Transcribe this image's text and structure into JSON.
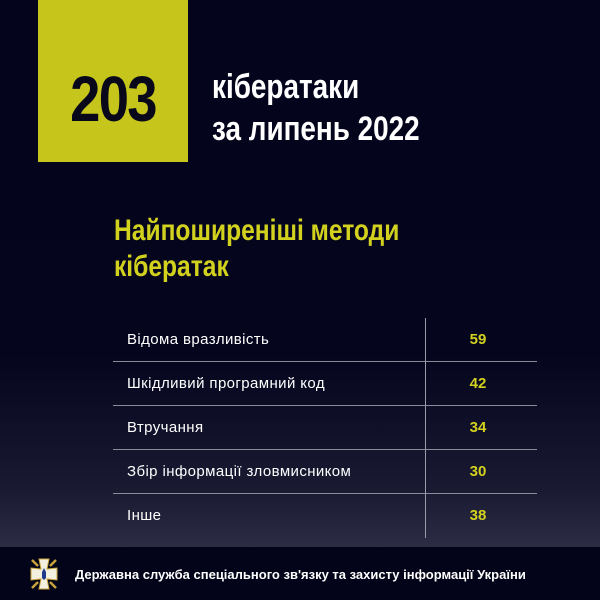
{
  "header": {
    "count": "203",
    "title_line1": "кібератаки",
    "title_line2": "за липень 2022"
  },
  "headline": {
    "line1": "Найпоширеніші методи",
    "line2": "кібератак"
  },
  "chart_data": {
    "type": "table",
    "title": "Найпоширеніші методи кібератак",
    "rows": [
      {
        "label": "Відома вразливість",
        "value": 59
      },
      {
        "label": "Шкідливий програмний код",
        "value": 42
      },
      {
        "label": "Втручання",
        "value": 34
      },
      {
        "label": "Збір інформації зловмисником",
        "value": 30
      },
      {
        "label": "Інше",
        "value": 38
      }
    ]
  },
  "footer": {
    "org": "Державна служба спеціального зв'язку та захисту інформації України",
    "logo_icon": "sszzi-cross-emblem-icon"
  },
  "colors": {
    "accent": "#c5c51c",
    "background": "#04041c"
  }
}
